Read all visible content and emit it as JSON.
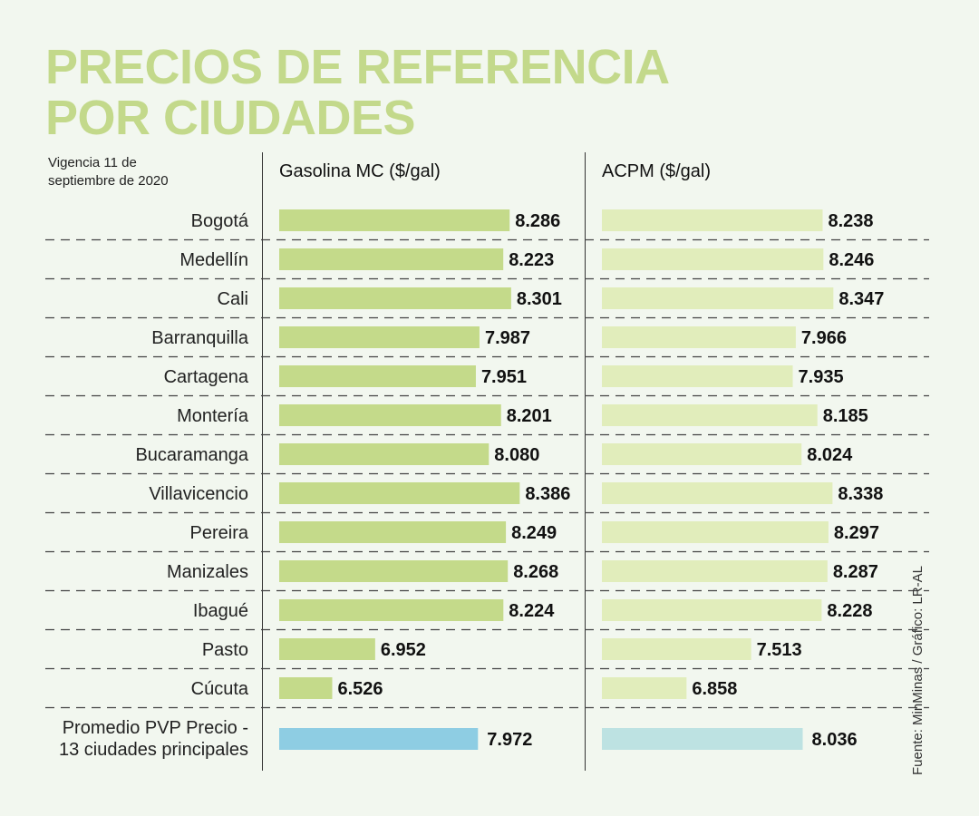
{
  "title_lines": [
    "PRECIOS DE REFERENCIA",
    "POR CIUDADES"
  ],
  "note": "Vigencia 11 de septiembre de 2020",
  "source": "Fuente: MinMinas / Gráfico: LR-AL",
  "colors": {
    "title": "#c3d98b",
    "gasolina_bar": "#c4da8a",
    "acpm_bar": "#e1edbb",
    "gasolina_avg": "#8ecde3",
    "acpm_avg": "#bde2e2",
    "background": "#f2f7ef"
  },
  "chart_data": {
    "type": "bar",
    "orientation": "horizontal",
    "title": "PRECIOS DE REFERENCIA POR CIUDADES",
    "categories": [
      "Bogotá",
      "Medellín",
      "Cali",
      "Barranquilla",
      "Cartagena",
      "Montería",
      "Bucaramanga",
      "Villavicencio",
      "Pereira",
      "Manizales",
      "Ibagué",
      "Pasto",
      "Cúcuta"
    ],
    "series": [
      {
        "name": "Gasolina MC ($/gal)",
        "values": [
          8286,
          8223,
          8301,
          7987,
          7951,
          8201,
          8080,
          8386,
          8249,
          8268,
          8224,
          6952,
          6526
        ],
        "labels": [
          "8.286",
          "8.223",
          "8.301",
          "7.987",
          "7.951",
          "8.201",
          "8.080",
          "8.386",
          "8.249",
          "8.268",
          "8.224",
          "6.952",
          "6.526"
        ]
      },
      {
        "name": "ACPM ($/gal)",
        "values": [
          8238,
          8246,
          8347,
          7966,
          7935,
          8185,
          8024,
          8338,
          8297,
          8287,
          8228,
          7513,
          6858
        ],
        "labels": [
          "8.238",
          "8.246",
          "8.347",
          "7.966",
          "7.935",
          "8.185",
          "8.024",
          "8.338",
          "8.297",
          "8.287",
          "8.228",
          "7.513",
          "6.858"
        ]
      }
    ],
    "average": {
      "label_lines": [
        "Promedio PVP Precio -",
        "13 ciudades principales"
      ],
      "values": [
        7972,
        8036
      ],
      "labels": [
        "7.972",
        "8.036"
      ]
    },
    "xlim": [
      6000,
      8500
    ]
  }
}
